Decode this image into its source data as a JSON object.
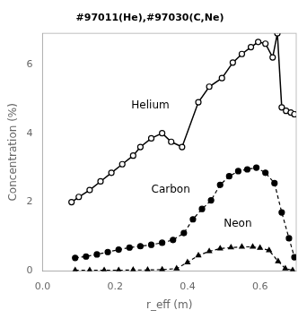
{
  "chart_data": {
    "type": "line",
    "title": "#97011(He),#97030(C,Ne)",
    "xlabel": "r_eff (m)",
    "ylabel": "Concentration (%)",
    "xlim": [
      0,
      0.7
    ],
    "ylim": [
      0,
      6.9
    ],
    "xticks": [
      {
        "value": 0,
        "label": "0.0"
      },
      0.2,
      0.4,
      0.6
    ],
    "yticks": [
      0,
      2,
      4,
      6
    ],
    "grid": false,
    "series": [
      {
        "name": "Helium",
        "color": "#000000",
        "marker": "circle_open",
        "line_style": "solid",
        "x": [
          0.08,
          0.1,
          0.13,
          0.16,
          0.19,
          0.22,
          0.25,
          0.27,
          0.3,
          0.33,
          0.355,
          0.385,
          0.43,
          0.46,
          0.495,
          0.525,
          0.55,
          0.575,
          0.595,
          0.615,
          0.635,
          0.648,
          0.66,
          0.672,
          0.685,
          0.695
        ],
        "values": [
          2.0,
          2.15,
          2.35,
          2.6,
          2.85,
          3.1,
          3.35,
          3.6,
          3.85,
          4.0,
          3.75,
          3.6,
          4.9,
          5.35,
          5.6,
          6.05,
          6.3,
          6.5,
          6.65,
          6.6,
          6.2,
          6.9,
          4.75,
          4.65,
          4.6,
          4.55
        ]
      },
      {
        "name": "Carbon",
        "color": "#000000",
        "marker": "circle",
        "line_style": "dashed",
        "x": [
          0.09,
          0.12,
          0.15,
          0.18,
          0.21,
          0.24,
          0.27,
          0.3,
          0.33,
          0.36,
          0.39,
          0.415,
          0.44,
          0.465,
          0.49,
          0.515,
          0.54,
          0.565,
          0.59,
          0.615,
          0.64,
          0.66,
          0.68,
          0.695
        ],
        "values": [
          0.38,
          0.42,
          0.48,
          0.55,
          0.62,
          0.68,
          0.72,
          0.76,
          0.82,
          0.9,
          1.1,
          1.5,
          1.8,
          2.05,
          2.5,
          2.75,
          2.9,
          2.95,
          3.0,
          2.85,
          2.55,
          1.7,
          0.95,
          0.4
        ]
      },
      {
        "name": "Neon",
        "color": "#000000",
        "marker": "triangle",
        "line_style": "dashed",
        "x": [
          0.09,
          0.13,
          0.17,
          0.21,
          0.25,
          0.29,
          0.33,
          0.37,
          0.4,
          0.43,
          0.46,
          0.49,
          0.52,
          0.55,
          0.58,
          0.6,
          0.625,
          0.65,
          0.67,
          0.69
        ],
        "values": [
          0.02,
          0.02,
          0.02,
          0.02,
          0.03,
          0.03,
          0.04,
          0.07,
          0.25,
          0.45,
          0.57,
          0.65,
          0.68,
          0.7,
          0.7,
          0.67,
          0.6,
          0.28,
          0.07,
          0.02
        ]
      }
    ],
    "annotations": [
      {
        "text": "Helium",
        "x": 0.245,
        "y": 4.65
      },
      {
        "text": "Carbon",
        "x": 0.3,
        "y": 2.2
      },
      {
        "text": "Neon",
        "x": 0.5,
        "y": 1.2
      }
    ]
  }
}
